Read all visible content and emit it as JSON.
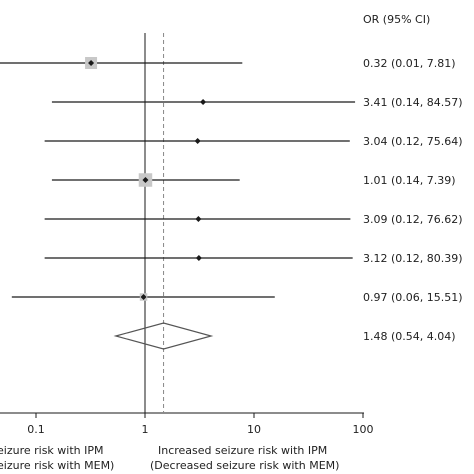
{
  "chart_data": {
    "type": "forest",
    "title": "",
    "scale": "log10",
    "xlim": [
      0.01,
      100
    ],
    "x_ticks": [
      {
        "value": 0.1,
        "label": "0.1"
      },
      {
        "value": 1,
        "label": "1"
      },
      {
        "value": 10,
        "label": "10"
      },
      {
        "value": 100,
        "label": "100"
      }
    ],
    "column_header": "OR (95% CI)",
    "x_label_left": [
      "eizure risk with IPM",
      "eizure risk with MEM)"
    ],
    "x_label_right": [
      "Increased seizure risk with IPM",
      "(Decreased seizure risk with MEM)"
    ],
    "reference_line": 1,
    "pooled_line": 1.48,
    "studies": [
      {
        "or": 0.32,
        "lo": 0.01,
        "hi": 7.81,
        "label": "0.32 (0.01, 7.81)",
        "weight": 0.6
      },
      {
        "or": 3.41,
        "lo": 0.14,
        "hi": 84.57,
        "label": "3.41 (0.14, 84.57)",
        "weight": 0.0
      },
      {
        "or": 3.04,
        "lo": 0.12,
        "hi": 75.64,
        "label": "3.04 (0.12, 75.64)",
        "weight": 0.05
      },
      {
        "or": 1.01,
        "lo": 0.14,
        "hi": 7.39,
        "label": "1.01 (0.14, 7.39)",
        "weight": 0.7
      },
      {
        "or": 3.09,
        "lo": 0.12,
        "hi": 76.62,
        "label": "3.09 (0.12, 76.62)",
        "weight": 0.0
      },
      {
        "or": 3.12,
        "lo": 0.12,
        "hi": 80.39,
        "label": "3.12 (0.12, 80.39)",
        "weight": 0.0
      },
      {
        "or": 0.97,
        "lo": 0.06,
        "hi": 15.51,
        "label": "0.97 (0.06, 15.51)",
        "weight": 0.3
      }
    ],
    "pooled": {
      "or": 1.48,
      "lo": 0.54,
      "hi": 4.04,
      "label": "1.48 (0.54, 4.04)"
    }
  },
  "colors": {
    "line": "#1a1a1a",
    "box": "#c8c8c8",
    "diamond": "#555555",
    "dashed": "#888888"
  }
}
